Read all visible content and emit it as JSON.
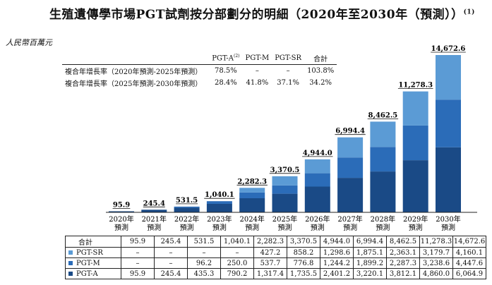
{
  "title": "生殖遺傳學市場PGT試劑按分部劃分的明細（2020年至2030年（預測））",
  "title_note": "(1)",
  "unit_label": "人民幣百萬元",
  "cagr": {
    "headers": [
      "",
      "PGT-A",
      "PGT-M",
      "PGT-SR",
      "合計"
    ],
    "header_note": "(2)",
    "rows": [
      {
        "label": "複合年增長率（2020年預測-2025年預測）",
        "values": [
          "78.5%",
          "–",
          "–",
          "103.8%"
        ]
      },
      {
        "label": "複合年增長率（2025年預測-2030年預測）",
        "values": [
          "28.4%",
          "41.8%",
          "37.1%",
          "34.2%"
        ]
      }
    ]
  },
  "colors": {
    "pgt_a": "#1a4a86",
    "pgt_m": "#2b6cb8",
    "pgt_sr": "#5b9bd5"
  },
  "chart_data": {
    "type": "bar",
    "stacked": true,
    "categories": [
      "2020年\n預測",
      "2021年\n預測",
      "2022年\n預測",
      "2023年\n預測",
      "2024年\n預測",
      "2025年\n預測",
      "2026年\n預測",
      "2027年\n預測",
      "2028年\n預測",
      "2029年\n預測",
      "2030年\n預測"
    ],
    "series": [
      {
        "name": "PGT-A",
        "values": [
          95.9,
          245.4,
          435.3,
          790.2,
          1317.4,
          1735.5,
          2401.2,
          3220.1,
          3812.1,
          4860.0,
          6064.9
        ]
      },
      {
        "name": "PGT-M",
        "values": [
          0,
          0,
          96.2,
          250.0,
          537.7,
          776.8,
          1244.2,
          1899.2,
          2287.3,
          3238.6,
          4447.6
        ]
      },
      {
        "name": "PGT-SR",
        "values": [
          0,
          0,
          0,
          0,
          427.2,
          858.2,
          1298.6,
          1875.1,
          2363.1,
          3179.7,
          4160.1
        ]
      }
    ],
    "totals": [
      95.9,
      245.4,
      531.5,
      1040.1,
      2282.3,
      3370.5,
      4944.0,
      6994.4,
      8462.5,
      11278.3,
      14672.6
    ],
    "total_labels": [
      "95.9",
      "245.4",
      "531.5",
      "1,040.1",
      "2,282.3",
      "3,370.5",
      "4,944.0",
      "6,994.4",
      "8,462.5",
      "11,278.3",
      "14,672.6"
    ],
    "ylim": [
      0,
      14672.6
    ],
    "xlabel": "",
    "ylabel": "人民幣百萬元"
  },
  "table": {
    "rows": [
      {
        "label": "合計",
        "swatch": "",
        "values": [
          "95.9",
          "245.4",
          "531.5",
          "1,040.1",
          "2,282.3",
          "3,370.5",
          "4,944.0",
          "6,994.4",
          "8,462.5",
          "11,278.3",
          "14,672.6"
        ]
      },
      {
        "label": "PGT-SR",
        "swatch": "pgt_sr",
        "values": [
          "–",
          "–",
          "–",
          "–",
          "427.2",
          "858.2",
          "1,298.6",
          "1,875.1",
          "2,363.1",
          "3,179.7",
          "4,160.1"
        ]
      },
      {
        "label": "PGT-M",
        "swatch": "pgt_m",
        "values": [
          "–",
          "–",
          "96.2",
          "250.0",
          "537.7",
          "776.8",
          "1,244.2",
          "1,899.2",
          "2,287.3",
          "3,238.6",
          "4,447.6"
        ]
      },
      {
        "label": "PGT-A",
        "swatch": "pgt_a",
        "values": [
          "95.9",
          "245.4",
          "435.3",
          "790.2",
          "1,317.4",
          "1,735.5",
          "2,401.2",
          "3,220.1",
          "3,812.1",
          "4,860.0",
          "6,064.9"
        ]
      }
    ]
  }
}
